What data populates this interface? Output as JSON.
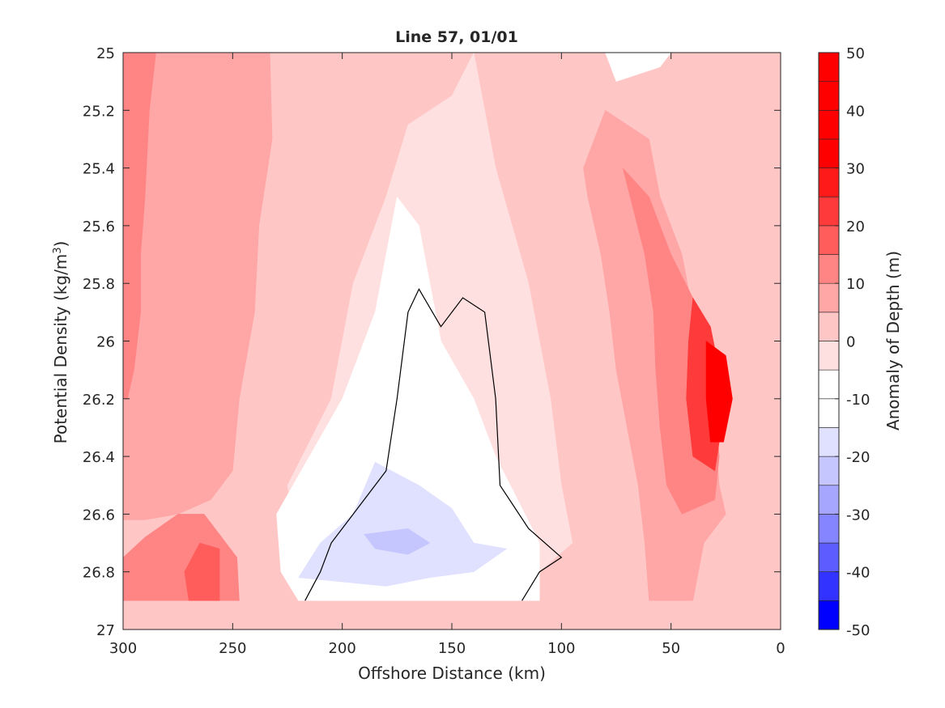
{
  "chart_data": {
    "type": "heatmap",
    "title": "Line 57, 01/01",
    "xlabel": "Offshore Distance (km)",
    "ylabel_main": "Potential Density (kg/m",
    "ylabel_sup": "3",
    "ylabel_close": ")",
    "xlim": [
      300,
      0
    ],
    "ylim": [
      25,
      27
    ],
    "x_ticks": [
      300,
      250,
      200,
      150,
      100,
      50,
      0
    ],
    "y_ticks": [
      25,
      25.2,
      25.4,
      25.6,
      25.8,
      26,
      26.2,
      26.4,
      26.6,
      26.8,
      27
    ],
    "y_tick_labels": [
      "25",
      "25.2",
      "25.4",
      "25.6",
      "25.8",
      "26",
      "26.2",
      "26.4",
      "26.6",
      "26.8",
      "27"
    ],
    "colorbar": {
      "label": "Anomaly of Depth (m)",
      "range": [
        -50,
        50
      ],
      "ticks": [
        50,
        40,
        30,
        20,
        10,
        0,
        -10,
        -20,
        -30,
        -40,
        -50
      ],
      "levels": [
        -50,
        -45,
        -35,
        -25,
        -15,
        -5,
        5,
        15,
        25,
        35,
        45,
        50
      ],
      "colors": [
        "#0000ff",
        "#3333ff",
        "#6666ff",
        "#8f8fff",
        "#b3b3ff",
        "#dcdcff",
        "#ffffff",
        "#ffe0e0",
        "#ffc6c6",
        "#ffa6a6",
        "#ff8585",
        "#ff5c5c",
        "#ff3a3a",
        "#ff1a1a",
        "#ff0000"
      ],
      "stepped_colors": [
        "#0000ff",
        "#3333ff",
        "#5c5cff",
        "#8585ff",
        "#a6a6ff",
        "#c6c6ff",
        "#e0e0ff",
        "#ffffff",
        "#ffffff",
        "#ffe0e0",
        "#ffc6c6",
        "#ffa6a6",
        "#ff8585",
        "#ff5c5c",
        "#ff3a3a",
        "#ff1a1a",
        "#ff0000",
        "#ff0000",
        "#ff0000",
        "#ff0000"
      ]
    },
    "bands": [
      {
        "level": 15,
        "color": "#ffc6c6",
        "points": [
          [
            300,
            25
          ],
          [
            0,
            25
          ],
          [
            0,
            27
          ],
          [
            300,
            27
          ]
        ]
      },
      {
        "level": 20,
        "color": "#ffa6a6",
        "points": [
          [
            300,
            25
          ],
          [
            233,
            25
          ],
          [
            232,
            25.3
          ],
          [
            238,
            25.6
          ],
          [
            240,
            25.9
          ],
          [
            247,
            26.2
          ],
          [
            250,
            26.45
          ],
          [
            260,
            26.55
          ],
          [
            275,
            26.6
          ],
          [
            290,
            26.62
          ],
          [
            300,
            26.62
          ]
        ]
      },
      {
        "level": 25,
        "color": "#ff8585",
        "points": [
          [
            300,
            25
          ],
          [
            285,
            25
          ],
          [
            288,
            25.2
          ],
          [
            290,
            25.5
          ],
          [
            292,
            25.7
          ],
          [
            292,
            25.9
          ],
          [
            295,
            26.1
          ],
          [
            298,
            26.2
          ],
          [
            300,
            26.2
          ]
        ]
      },
      {
        "level": 25,
        "color": "#ff8585",
        "points": [
          [
            300,
            26.75
          ],
          [
            290,
            26.68
          ],
          [
            275,
            26.6
          ],
          [
            263,
            26.6
          ],
          [
            255,
            26.68
          ],
          [
            248,
            26.75
          ],
          [
            247,
            26.9
          ],
          [
            300,
            26.9
          ]
        ]
      },
      {
        "level": 30,
        "color": "#ff5c5c",
        "points": [
          [
            270,
            26.9
          ],
          [
            272,
            26.8
          ],
          [
            265,
            26.7
          ],
          [
            256,
            26.72
          ],
          [
            256,
            26.9
          ]
        ]
      },
      {
        "level": 20,
        "color": "#ffa6a6",
        "points": [
          [
            80,
            25.2
          ],
          [
            60,
            25.3
          ],
          [
            55,
            25.5
          ],
          [
            45,
            25.7
          ],
          [
            40,
            25.9
          ],
          [
            35,
            26.1
          ],
          [
            30,
            26.3
          ],
          [
            28,
            26.5
          ],
          [
            25,
            26.6
          ],
          [
            35,
            26.7
          ],
          [
            40,
            26.9
          ],
          [
            60,
            26.9
          ],
          [
            62,
            26.7
          ],
          [
            65,
            26.5
          ],
          [
            70,
            26.3
          ],
          [
            75,
            26.1
          ],
          [
            78,
            25.9
          ],
          [
            82,
            25.7
          ],
          [
            88,
            25.5
          ],
          [
            90,
            25.4
          ]
        ]
      },
      {
        "level": 25,
        "color": "#ff8585",
        "points": [
          [
            72,
            25.4
          ],
          [
            60,
            25.5
          ],
          [
            50,
            25.7
          ],
          [
            40,
            25.85
          ],
          [
            35,
            26.0
          ],
          [
            30,
            26.2
          ],
          [
            28,
            26.4
          ],
          [
            30,
            26.55
          ],
          [
            45,
            26.6
          ],
          [
            52,
            26.5
          ],
          [
            55,
            26.3
          ],
          [
            57,
            26.1
          ],
          [
            58,
            25.9
          ],
          [
            62,
            25.7
          ]
        ]
      },
      {
        "level": 35,
        "color": "#ff3a3a",
        "points": [
          [
            40,
            25.85
          ],
          [
            32,
            25.95
          ],
          [
            28,
            26.1
          ],
          [
            27,
            26.3
          ],
          [
            30,
            26.45
          ],
          [
            40,
            26.4
          ],
          [
            43,
            26.2
          ],
          [
            42,
            26.0
          ]
        ]
      },
      {
        "level": 45,
        "color": "#ff0000",
        "points": [
          [
            34,
            26.0
          ],
          [
            25,
            26.05
          ],
          [
            22,
            26.2
          ],
          [
            26,
            26.35
          ],
          [
            32,
            26.35
          ],
          [
            34,
            26.2
          ]
        ]
      },
      {
        "level": 10,
        "color": "#ffe0e0",
        "points": [
          [
            140,
            25
          ],
          [
            130,
            25.4
          ],
          [
            115,
            25.8
          ],
          [
            105,
            26.2
          ],
          [
            100,
            26.5
          ],
          [
            95,
            26.7
          ],
          [
            110,
            26.8
          ],
          [
            120,
            26.9
          ],
          [
            210,
            26.9
          ],
          [
            220,
            26.7
          ],
          [
            225,
            26.5
          ],
          [
            205,
            26.2
          ],
          [
            195,
            25.8
          ],
          [
            180,
            25.5
          ],
          [
            170,
            25.25
          ],
          [
            150,
            25.15
          ]
        ]
      },
      {
        "level": 5,
        "color": "#ffffff",
        "points": [
          [
            175,
            25.5
          ],
          [
            165,
            25.6
          ],
          [
            160,
            25.8
          ],
          [
            155,
            26.0
          ],
          [
            140,
            26.2
          ],
          [
            130,
            26.4
          ],
          [
            120,
            26.55
          ],
          [
            110,
            26.7
          ],
          [
            110,
            26.9
          ],
          [
            220,
            26.9
          ],
          [
            228,
            26.8
          ],
          [
            230,
            26.6
          ],
          [
            215,
            26.4
          ],
          [
            200,
            26.2
          ],
          [
            185,
            25.9
          ],
          [
            180,
            25.7
          ]
        ]
      },
      {
        "level": -10,
        "color": "#e0e0ff",
        "points": [
          [
            185,
            26.42
          ],
          [
            165,
            26.5
          ],
          [
            150,
            26.58
          ],
          [
            140,
            26.7
          ],
          [
            125,
            26.72
          ],
          [
            140,
            26.8
          ],
          [
            160,
            26.82
          ],
          [
            180,
            26.85
          ],
          [
            220,
            26.82
          ],
          [
            210,
            26.7
          ],
          [
            195,
            26.6
          ]
        ]
      },
      {
        "level": -15,
        "color": "#c6c6ff",
        "points": [
          [
            170,
            26.65
          ],
          [
            160,
            26.7
          ],
          [
            170,
            26.74
          ],
          [
            185,
            26.72
          ],
          [
            190,
            26.67
          ]
        ]
      },
      {
        "level": 5,
        "color": "#ffffff",
        "points": [
          [
            80,
            25
          ],
          [
            75,
            25.1
          ],
          [
            55,
            25.05
          ],
          [
            50,
            25
          ]
        ]
      }
    ],
    "contours": [
      [
        [
          217,
          26.9
        ],
        [
          210,
          26.8
        ],
        [
          205,
          26.7
        ],
        [
          195,
          26.6
        ],
        [
          180,
          26.45
        ],
        [
          175,
          26.2
        ],
        [
          170,
          25.9
        ],
        [
          165,
          25.82
        ],
        [
          155,
          25.95
        ],
        [
          145,
          25.85
        ],
        [
          135,
          25.9
        ],
        [
          130,
          26.2
        ],
        [
          128,
          26.5
        ],
        [
          115,
          26.65
        ],
        [
          100,
          26.75
        ],
        [
          110,
          26.8
        ],
        [
          118,
          26.9
        ]
      ]
    ]
  },
  "hairline_color": "#000000",
  "axis_color": "#262626"
}
